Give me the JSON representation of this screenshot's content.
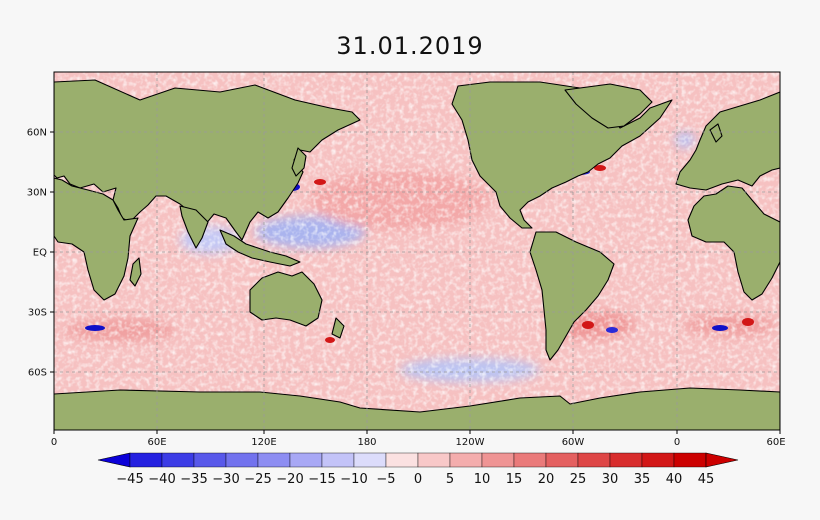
{
  "map": {
    "title": "31.01.2019",
    "lat_labels": [
      "60N",
      "30N",
      "EQ",
      "30S",
      "60S"
    ],
    "lon_labels": [
      "0",
      "60E",
      "120E",
      "180",
      "120W",
      "60W",
      "0",
      "60E"
    ],
    "colors": {
      "land": "#9aaf6d",
      "coast": "#000000",
      "warm_base": "#f6c1c1",
      "grid": "#9a9a9a"
    }
  },
  "colorbar": {
    "labels": [
      "−45",
      "−40",
      "−35",
      "−30",
      "−25",
      "−20",
      "−15",
      "−10",
      "−5",
      "0",
      "5",
      "10",
      "15",
      "20",
      "25",
      "30",
      "35",
      "40",
      "45"
    ],
    "colors": [
      "#0b00d8",
      "#2420e0",
      "#3c3ce6",
      "#5858ea",
      "#7272ee",
      "#8d8df2",
      "#a8a8f5",
      "#c3c3f8",
      "#dcdcfb",
      "#fbe1e1",
      "#f8c8c8",
      "#f4adad",
      "#ef9494",
      "#ea7a7a",
      "#e46060",
      "#de4646",
      "#d82d2d",
      "#d21717",
      "#cc0000"
    ]
  }
}
